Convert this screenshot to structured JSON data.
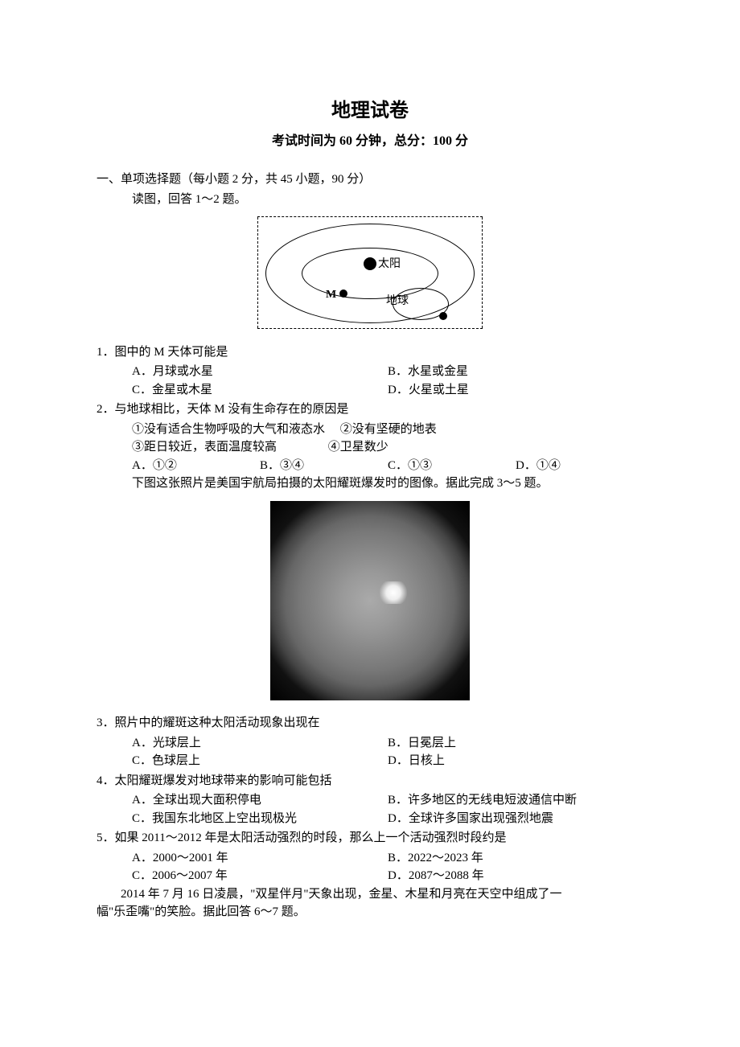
{
  "title": "地理试卷",
  "subtitle": "考试时间为 60 分钟，总分：100 分",
  "section1_heading": "一、单项选择题（每小题 2 分，共 45 小题，90 分）",
  "intro_1_2": "读图，回答 1～2 题。",
  "orbit_labels": {
    "sun": "太阳",
    "m": "M",
    "earth": "地球"
  },
  "q1": {
    "stem": "1．图中的 M 天体可能是",
    "a": "A．月球或水星",
    "b": "B．水星或金星",
    "c": "C．金星或木星",
    "d": "D．火星或土星"
  },
  "q2": {
    "stem": "2．与地球相比，天体 M 没有生命存在的原因是",
    "line1": "①没有适合生物呼吸的大气和液态水",
    "line2": "②没有坚硬的地表",
    "line3": "③距日较近，表面温度较高",
    "line4": "④卫星数少",
    "a": "A．①②",
    "b": "B．③④",
    "c": "C．①③",
    "d": "D．①④"
  },
  "intro_3_5": "下图这张照片是美国宇航局拍摄的太阳耀斑爆发时的图像。据此完成 3～5 题。",
  "q3": {
    "stem": "3．照片中的耀斑这种太阳活动现象出现在",
    "a": "A．光球层上",
    "b": "B．日冕层上",
    "c": "C．色球层上",
    "d": "D．日核上"
  },
  "q4": {
    "stem": "4．太阳耀斑爆发对地球带来的影响可能包括",
    "a": "A．全球出现大面积停电",
    "b": "B．许多地区的无线电短波通信中断",
    "c": "C．我国东北地区上空出现极光",
    "d": "D．全球许多国家出现强烈地震"
  },
  "q5": {
    "stem": "5．如果 2011～2012 年是太阳活动强烈的时段，那么上一个活动强烈时段约是",
    "a": "A．2000～2001 年",
    "b": "B．2022～2023 年",
    "c": "C．2006～2007 年",
    "d": "D．2087～2088 年"
  },
  "intro_6_7_a": "2014 年 7 月 16 日凌晨，\"双星伴月\"天象出现，金星、木星和月亮在天空中组成了一",
  "intro_6_7_b": "幅\"乐歪嘴\"的笑脸。据此回答 6～7 题。"
}
